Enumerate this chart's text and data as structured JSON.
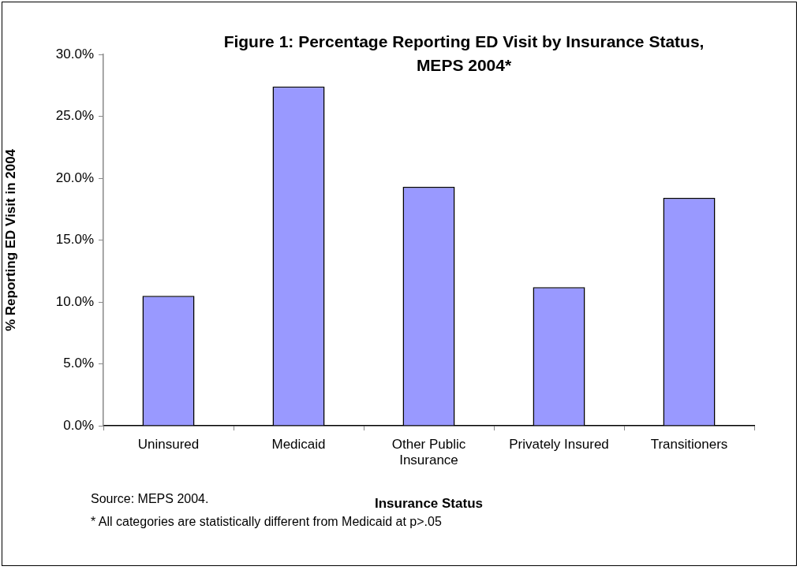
{
  "chart_data": {
    "type": "bar",
    "title": "Figure 1: Percentage Reporting ED Visit by Insurance Status, MEPS 2004*",
    "xlabel": "Insurance Status",
    "ylabel": "% Reporting ED Visit in 2004",
    "categories": [
      "Uninsured",
      "Medicaid",
      "Other Public Insurance",
      "Privately Insured",
      "Transitioners"
    ],
    "values": [
      10.5,
      27.4,
      19.3,
      11.2,
      18.4
    ],
    "color": "#9999ff",
    "ylim": [
      0,
      30
    ],
    "yticks": [
      {
        "value": 0,
        "label": "0.0%"
      },
      {
        "value": 5,
        "label": "5.0%"
      },
      {
        "value": 10,
        "label": "10.0%"
      },
      {
        "value": 15,
        "label": "15.0%"
      },
      {
        "value": 20,
        "label": "20.0%"
      },
      {
        "value": 25,
        "label": "25.0%"
      },
      {
        "value": 30,
        "label": "30.0%"
      }
    ],
    "grid": false,
    "legend": false,
    "annotations": [
      "Source:  MEPS 2004.",
      "* All categories are statistically different from Medicaid at p>.05"
    ]
  }
}
